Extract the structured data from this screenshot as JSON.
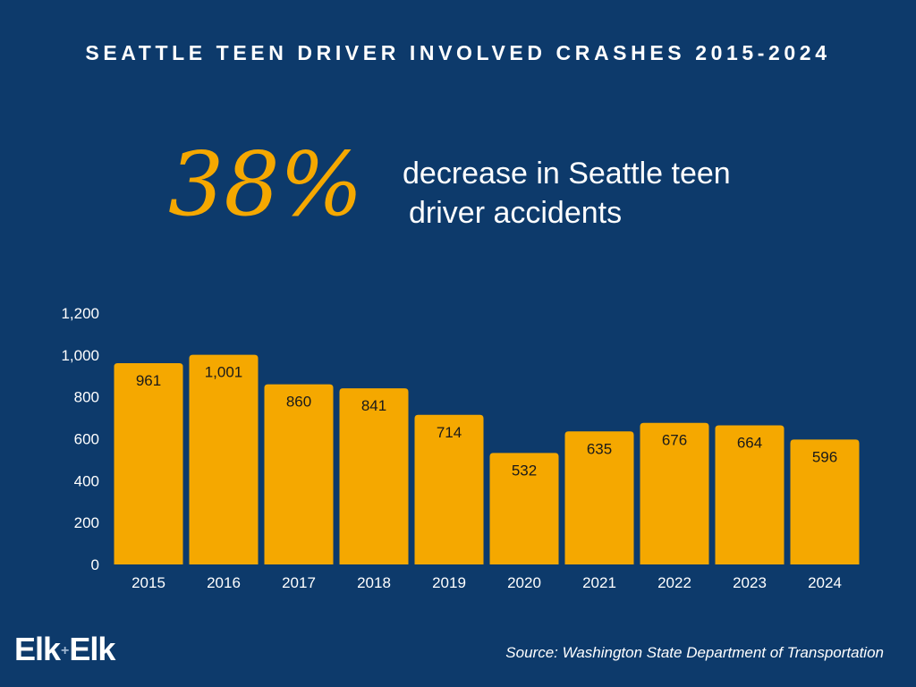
{
  "title": "SEATTLE TEEN DRIVER INVOLVED CRASHES 2015-2024",
  "stat": {
    "value": "38%",
    "line1": "decrease in Seattle teen",
    "line2": "driver accidents"
  },
  "colors": {
    "background": "#0d3a6b",
    "accent": "#f5a800",
    "text": "#ffffff"
  },
  "chart_data": {
    "type": "bar",
    "title": "SEATTLE TEEN DRIVER INVOLVED CRASHES 2015-2024",
    "categories": [
      "2015",
      "2016",
      "2017",
      "2018",
      "2019",
      "2020",
      "2021",
      "2022",
      "2023",
      "2024"
    ],
    "values": [
      961,
      1001,
      860,
      841,
      714,
      532,
      635,
      676,
      664,
      596
    ],
    "data_labels": [
      "961",
      "1,001",
      "860",
      "841",
      "714",
      "532",
      "635",
      "676",
      "664",
      "596"
    ],
    "y_ticks": [
      0,
      200,
      400,
      600,
      800,
      1000,
      1200
    ],
    "y_tick_labels": [
      "0",
      "200",
      "400",
      "600",
      "800",
      "1,000",
      "1,200"
    ],
    "ylim": [
      0,
      1200
    ],
    "xlabel": "",
    "ylabel": "",
    "grid": false,
    "legend": "none",
    "bar_color": "#f5a800"
  },
  "logo": {
    "left": "Elk",
    "plus": "+",
    "right": "Elk"
  },
  "source": "Source: Washington State Department of Transportation"
}
